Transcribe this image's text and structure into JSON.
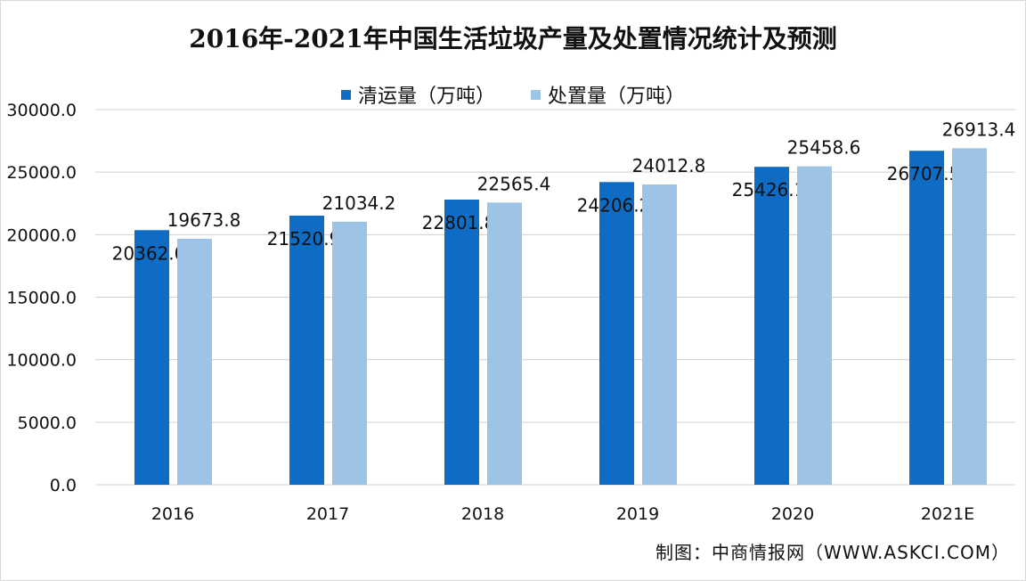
{
  "chart_data": {
    "type": "bar",
    "title": "2016年-2021年中国生活垃圾产量及处置情况统计及预测",
    "categories": [
      "2016",
      "2017",
      "2018",
      "2019",
      "2020",
      "2021E"
    ],
    "series": [
      {
        "name": "清运量（万吨）",
        "color": "#0f6cc5",
        "values": [
          20362.0,
          21520.9,
          22801.8,
          24206.2,
          25426.1,
          26707.5
        ],
        "labels": [
          "20362.0",
          "21520.9",
          "22801.8",
          "24206.2",
          "25426.1",
          "26707.5"
        ]
      },
      {
        "name": "处置量（万吨）",
        "color": "#9dc3e6",
        "values": [
          19673.8,
          21034.2,
          22565.4,
          24012.8,
          25458.6,
          26913.4
        ],
        "labels": [
          "19673.8",
          "21034.2",
          "22565.4",
          "24012.8",
          "25458.6",
          "26913.4"
        ]
      }
    ],
    "ylim": [
      0,
      30000
    ],
    "yticks": [
      "0.0",
      "5000.0",
      "10000.0",
      "15000.0",
      "20000.0",
      "25000.0",
      "30000.0"
    ],
    "grid": true,
    "legend": "top"
  },
  "source": "制图：中商情报网（WWW.ASKCI.COM）"
}
